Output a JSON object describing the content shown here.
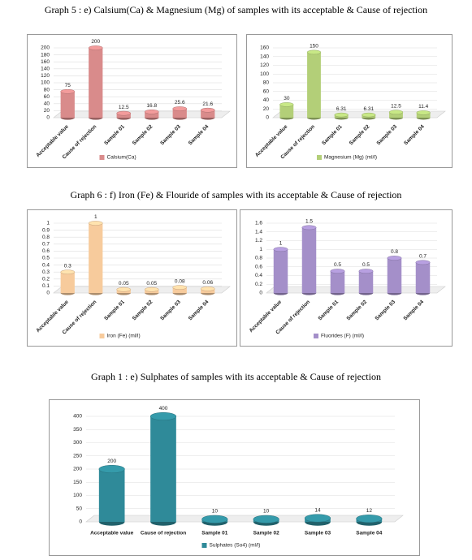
{
  "captions": [
    "Graph 5 : e) Calsium(Ca)  & Magnesium (Mg) of samples with its acceptable & Cause of rejection",
    "Graph 6 : f) Iron (Fe)  & Flouride of samples with its acceptable & Cause of rejection",
    "Graph 1 : e) Sulphates  of samples with its acceptable & Cause of rejection"
  ],
  "chart_data": [
    {
      "type": "bar",
      "categories": [
        "Acceptable value",
        "Cause of rejection",
        "Sample 01",
        "Sample 02",
        "Sample 03",
        "Sample 04"
      ],
      "series": [
        {
          "name": "Calsium(Ca)",
          "color": "#d98b8b",
          "values": [
            75,
            200,
            12.5,
            16.8,
            25.6,
            21.6
          ]
        }
      ],
      "ylim": [
        0,
        200
      ],
      "yticks": [
        0,
        20,
        40,
        60,
        80,
        100,
        120,
        140,
        160,
        180,
        200
      ]
    },
    {
      "type": "bar",
      "categories": [
        "Acceptable value",
        "Cause of rejection",
        "Sample 01",
        "Sample 02",
        "Sample 03",
        "Sample 04"
      ],
      "series": [
        {
          "name": "Magnesium (Mg) (ml/l)",
          "color": "#b3cf78",
          "values": [
            30,
            150,
            6.31,
            6.31,
            12.5,
            11.4
          ]
        }
      ],
      "ylim": [
        0,
        160
      ],
      "yticks": [
        0,
        20,
        40,
        60,
        80,
        100,
        120,
        140,
        160
      ]
    },
    {
      "type": "bar",
      "categories": [
        "Acceptable value",
        "Cause of rejection",
        "Sample 01",
        "Sample 02",
        "Sample 03",
        "Sample 04"
      ],
      "series": [
        {
          "name": "Iron (Fe) (ml/l)",
          "color": "#f7cb9c",
          "values": [
            0.3,
            1,
            0.05,
            0.05,
            0.08,
            0.06
          ]
        }
      ],
      "ylim": [
        0,
        1
      ],
      "yticks": [
        0,
        0.1,
        0.2,
        0.3,
        0.4,
        0.5,
        0.6,
        0.7,
        0.8,
        0.9,
        1
      ]
    },
    {
      "type": "bar",
      "categories": [
        "Acceptable value",
        "Cause of rejection",
        "Sample 01",
        "Sample 02",
        "Sample 03",
        "Sample 04"
      ],
      "series": [
        {
          "name": "Fluorides (F) (ml/l)",
          "color": "#a48fc9",
          "values": [
            1,
            1.5,
            0.5,
            0.5,
            0.8,
            0.7
          ]
        }
      ],
      "ylim": [
        0,
        1.6
      ],
      "yticks": [
        0,
        0.2,
        0.4,
        0.6,
        0.8,
        1,
        1.2,
        1.4,
        1.6
      ]
    },
    {
      "type": "bar",
      "categories": [
        "Acceptable value",
        "Cause of rejection",
        "Sample 01",
        "Sample 02",
        "Sample 03",
        "Sample 04"
      ],
      "series": [
        {
          "name": "Sulphates (So4) (ml/l)",
          "color": "#2f8a99",
          "values": [
            200,
            400,
            10,
            10,
            14,
            12
          ]
        }
      ],
      "ylim": [
        0,
        400
      ],
      "yticks": [
        0,
        50,
        100,
        150,
        200,
        250,
        300,
        350,
        400
      ]
    }
  ]
}
